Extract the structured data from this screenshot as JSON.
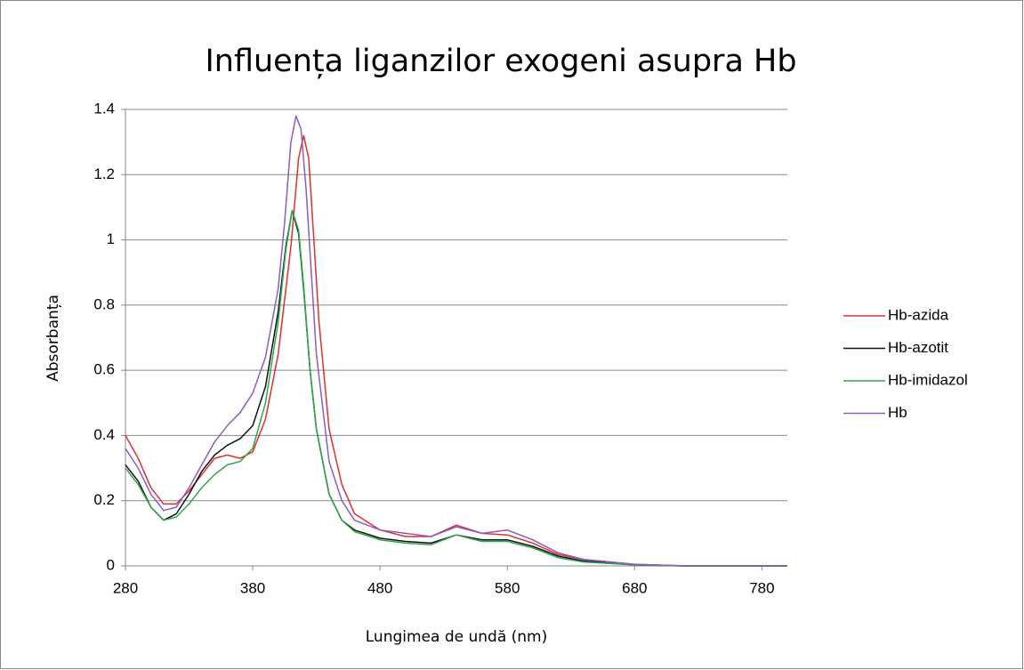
{
  "chart_data": {
    "type": "line",
    "title": "Influența liganzilor  exogeni asupra Hb",
    "xlabel": "Lungimea de undă (nm)",
    "ylabel": "Absorbanța",
    "xlim": [
      280,
      800
    ],
    "xticks": [
      280,
      380,
      480,
      580,
      680,
      780
    ],
    "ylim": [
      0,
      1.4
    ],
    "yticks": [
      0,
      0.2,
      0.4,
      0.6,
      0.8,
      1,
      1.2,
      1.4
    ],
    "grid": true,
    "legend": "right",
    "series": [
      {
        "name": "Hb-azida",
        "color": "#e0302a",
        "x": [
          280,
          290,
          300,
          310,
          320,
          330,
          340,
          350,
          360,
          370,
          380,
          390,
          400,
          410,
          416,
          420,
          424,
          428,
          432,
          440,
          450,
          460,
          480,
          500,
          520,
          540,
          560,
          580,
          600,
          620,
          640,
          680,
          720,
          800
        ],
        "values": [
          0.4,
          0.33,
          0.24,
          0.19,
          0.19,
          0.23,
          0.28,
          0.33,
          0.34,
          0.33,
          0.35,
          0.45,
          0.65,
          0.98,
          1.25,
          1.32,
          1.25,
          1.0,
          0.75,
          0.42,
          0.25,
          0.16,
          0.11,
          0.09,
          0.09,
          0.125,
          0.1,
          0.095,
          0.07,
          0.035,
          0.02,
          0.005,
          0,
          0
        ]
      },
      {
        "name": "Hb-azotit",
        "color": "#111111",
        "x": [
          280,
          290,
          300,
          310,
          320,
          330,
          340,
          350,
          360,
          370,
          380,
          390,
          400,
          406,
          411,
          416,
          420,
          425,
          430,
          440,
          450,
          460,
          480,
          500,
          520,
          540,
          560,
          580,
          600,
          620,
          640,
          680,
          720,
          800
        ],
        "values": [
          0.31,
          0.26,
          0.18,
          0.14,
          0.16,
          0.22,
          0.29,
          0.34,
          0.37,
          0.39,
          0.43,
          0.55,
          0.78,
          0.98,
          1.09,
          1.02,
          0.85,
          0.6,
          0.42,
          0.22,
          0.14,
          0.11,
          0.085,
          0.075,
          0.07,
          0.095,
          0.08,
          0.08,
          0.06,
          0.03,
          0.015,
          0.003,
          0,
          0
        ]
      },
      {
        "name": "Hb-imidazol",
        "color": "#2aa84a",
        "x": [
          280,
          290,
          300,
          310,
          320,
          330,
          340,
          350,
          360,
          370,
          380,
          390,
          400,
          406,
          411,
          416,
          420,
          425,
          430,
          440,
          450,
          460,
          480,
          500,
          520,
          540,
          560,
          580,
          600,
          620,
          640,
          680,
          720,
          800
        ],
        "values": [
          0.3,
          0.25,
          0.18,
          0.14,
          0.15,
          0.19,
          0.24,
          0.28,
          0.31,
          0.32,
          0.36,
          0.5,
          0.75,
          0.97,
          1.09,
          1.03,
          0.86,
          0.6,
          0.42,
          0.22,
          0.14,
          0.105,
          0.08,
          0.07,
          0.065,
          0.095,
          0.075,
          0.075,
          0.055,
          0.025,
          0.012,
          0.003,
          0,
          0
        ]
      },
      {
        "name": "Hb",
        "color": "#8a5cc4",
        "x": [
          280,
          290,
          300,
          310,
          320,
          330,
          340,
          350,
          360,
          370,
          380,
          390,
          400,
          405,
          410,
          414,
          418,
          422,
          426,
          430,
          440,
          450,
          460,
          480,
          500,
          520,
          540,
          560,
          580,
          600,
          620,
          640,
          680,
          720,
          800
        ],
        "values": [
          0.36,
          0.3,
          0.22,
          0.17,
          0.18,
          0.24,
          0.31,
          0.38,
          0.43,
          0.47,
          0.53,
          0.64,
          0.85,
          1.05,
          1.3,
          1.38,
          1.34,
          1.15,
          0.9,
          0.65,
          0.32,
          0.2,
          0.14,
          0.11,
          0.1,
          0.09,
          0.12,
          0.1,
          0.11,
          0.08,
          0.04,
          0.02,
          0.005,
          0,
          0
        ]
      }
    ]
  }
}
